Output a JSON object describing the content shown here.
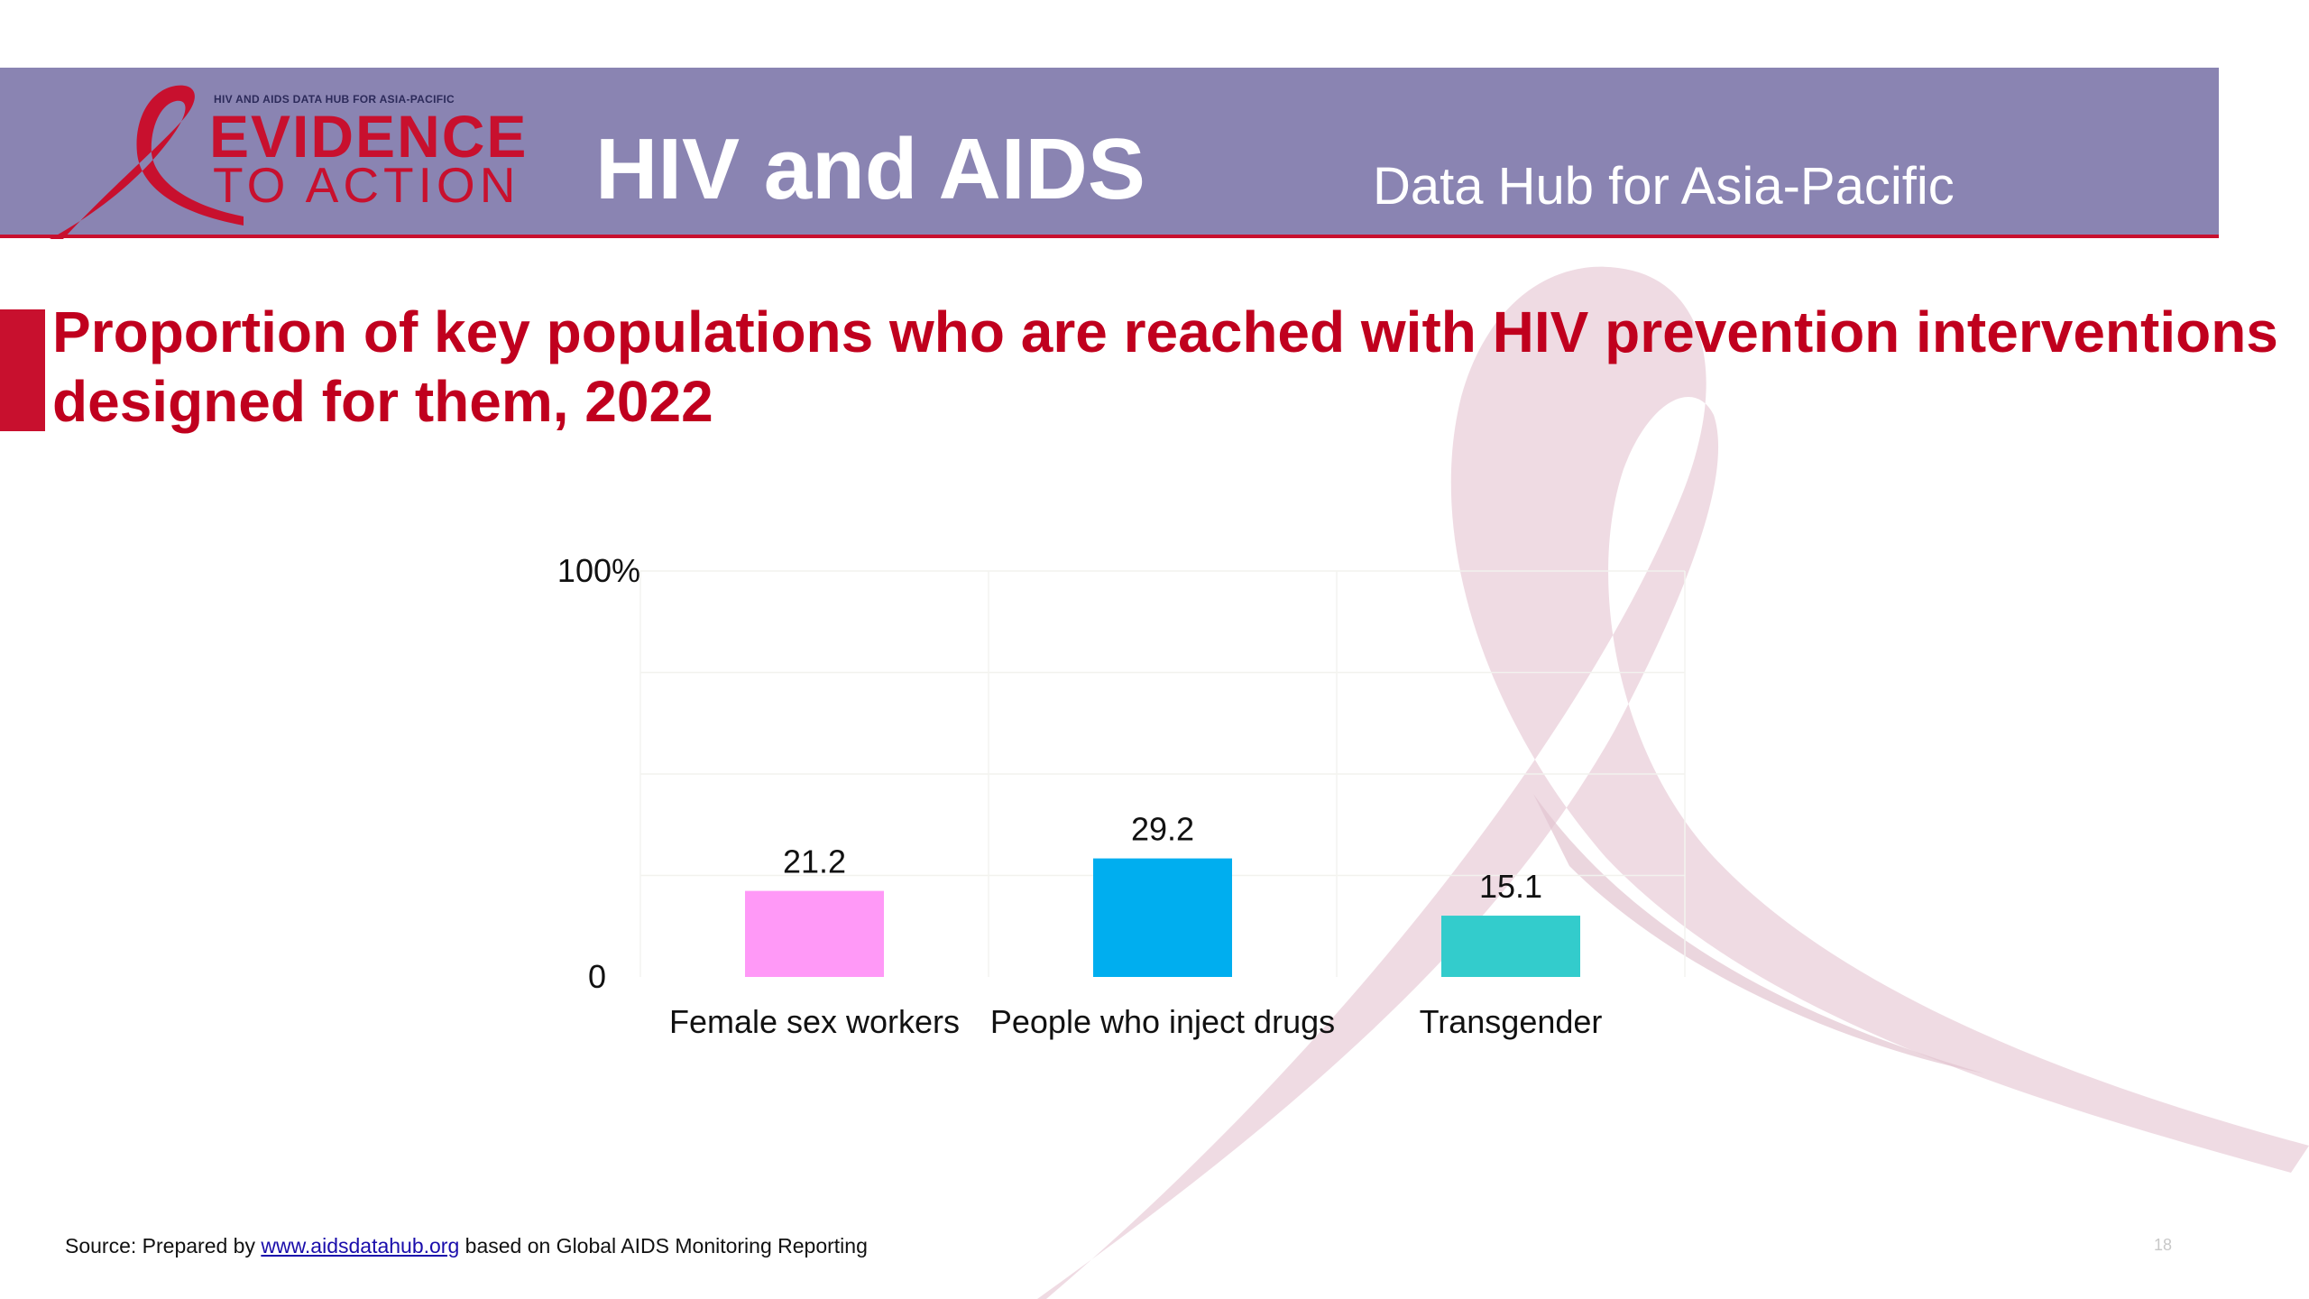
{
  "header": {
    "logo_tagline": "HIV AND AIDS DATA HUB FOR ASIA-PACIFIC",
    "logo_line1": "EVIDENCE",
    "logo_line2": "TO ACTION",
    "title": "HIV and AIDS",
    "subtitle": "Data Hub for Asia-Pacific"
  },
  "slide": {
    "title_line1": "Proportion of key populations who are reached with HIV prevention interventions",
    "title_line2": "designed for them, 2022"
  },
  "footer": {
    "source_prefix": "Source: Prepared by ",
    "source_link": "www.aidsdatahub.org",
    "source_suffix": " based on Global AIDS Monitoring Reporting",
    "page_number": "18"
  },
  "colors": {
    "header_band": "#8a84b2",
    "brand_red": "#c8102e",
    "title_red": "#c0001e",
    "ribbon_watermark": "#ecd5de"
  },
  "chart_data": {
    "type": "bar",
    "categories": [
      "Female sex workers",
      "People who inject drugs",
      "Transgender"
    ],
    "values": [
      21.2,
      29.2,
      15.1
    ],
    "value_labels": [
      "21.2",
      "29.2",
      "15.1"
    ],
    "colors": [
      "#ff99f7",
      "#00aeef",
      "#33cccc"
    ],
    "ylim": [
      0,
      100
    ],
    "y_tick_labels": [
      "0",
      "100%"
    ],
    "grid": true,
    "legend": "none"
  }
}
